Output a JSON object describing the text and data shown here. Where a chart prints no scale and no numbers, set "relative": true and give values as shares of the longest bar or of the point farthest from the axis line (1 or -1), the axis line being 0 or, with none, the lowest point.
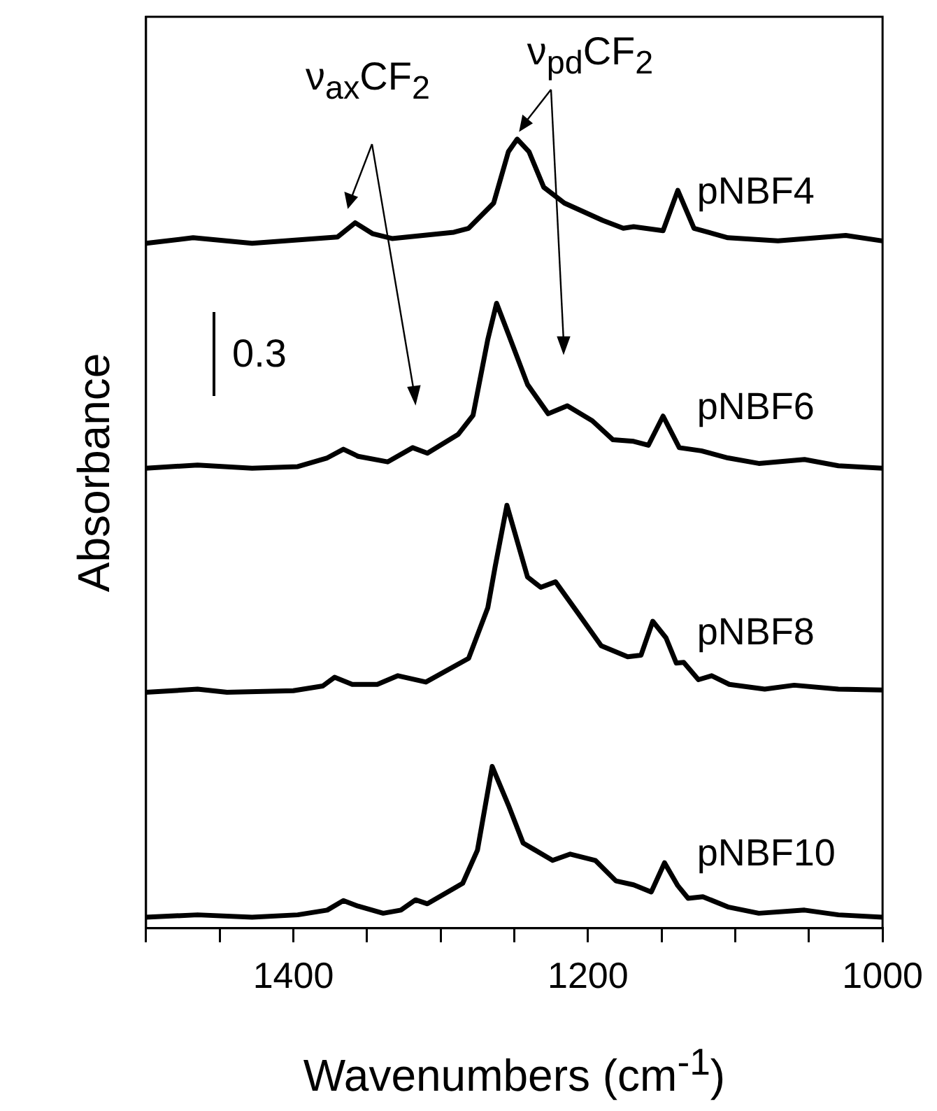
{
  "chart_data": {
    "type": "line",
    "xlabel": "Wavenumbers (cm$^{-1}$)",
    "ylabel": "Absorbance",
    "relative": true,
    "xlim": [
      1500,
      1000
    ],
    "xticks": [
      {
        "value": 1500,
        "label": null
      },
      {
        "value": 1450,
        "label": null
      },
      1400,
      {
        "value": 1350,
        "label": null
      },
      {
        "value": 1300,
        "label": null
      },
      {
        "value": 1250,
        "label": null
      },
      1200,
      {
        "value": 1150,
        "label": null
      },
      {
        "value": 1100,
        "label": null
      },
      {
        "value": 1050,
        "label": null
      },
      1000
    ],
    "tick_labels": "x",
    "grid": false,
    "legend": false,
    "marker": "none",
    "line_style": "solid",
    "annotations": [
      "ν$_{ax}$CF$_{2}$",
      "ν$_{pd}$CF$_{2}$",
      "0.3"
    ],
    "series": [
      {
        "name": "pNBF4",
        "color": "#000000",
        "x": [
          1500,
          1468,
          1428,
          1370,
          1358,
          1346,
          1333,
          1291,
          1281,
          1264,
          1254,
          1248,
          1240,
          1230,
          1216,
          1190,
          1176,
          1169,
          1149,
          1139,
          1128,
          1105,
          1071,
          1025,
          1000
        ],
        "values": [
          0.868,
          0.875,
          0.868,
          0.876,
          0.894,
          0.88,
          0.874,
          0.882,
          0.887,
          0.919,
          0.984,
          1.0,
          0.984,
          0.939,
          0.919,
          0.897,
          0.887,
          0.889,
          0.884,
          0.935,
          0.887,
          0.875,
          0.871,
          0.878,
          0.871
        ]
      },
      {
        "name": "pNBF6",
        "color": "#000000",
        "x": [
          1500,
          1465,
          1428,
          1397,
          1377,
          1366,
          1356,
          1336,
          1319,
          1309,
          1288,
          1278,
          1268,
          1262,
          1254,
          1241,
          1227,
          1214,
          1197,
          1183,
          1169,
          1159,
          1149,
          1138,
          1123,
          1105,
          1084,
          1053,
          1030,
          1000
        ],
        "values": [
          0.583,
          0.587,
          0.583,
          0.585,
          0.596,
          0.607,
          0.598,
          0.591,
          0.609,
          0.602,
          0.626,
          0.65,
          0.746,
          0.792,
          0.753,
          0.689,
          0.652,
          0.662,
          0.643,
          0.619,
          0.617,
          0.612,
          0.649,
          0.609,
          0.605,
          0.596,
          0.589,
          0.594,
          0.586,
          0.583
        ]
      },
      {
        "name": "pNBF8",
        "color": "#000000",
        "x": [
          1500,
          1465,
          1445,
          1400,
          1380,
          1372,
          1360,
          1343,
          1329,
          1310,
          1281,
          1268,
          1263,
          1255,
          1241,
          1232,
          1222,
          1207,
          1191,
          1173,
          1164,
          1156,
          1147,
          1140,
          1135,
          1125,
          1116,
          1104,
          1080,
          1060,
          1030,
          1000
        ],
        "values": [
          0.299,
          0.303,
          0.299,
          0.301,
          0.307,
          0.318,
          0.309,
          0.309,
          0.32,
          0.312,
          0.342,
          0.406,
          0.458,
          0.536,
          0.445,
          0.432,
          0.439,
          0.4,
          0.358,
          0.344,
          0.346,
          0.389,
          0.368,
          0.336,
          0.337,
          0.315,
          0.32,
          0.309,
          0.303,
          0.308,
          0.303,
          0.302
        ]
      },
      {
        "name": "pNBF10",
        "color": "#000000",
        "x": [
          1500,
          1465,
          1428,
          1397,
          1377,
          1366,
          1356,
          1339,
          1327,
          1317,
          1309,
          1285,
          1275,
          1265,
          1254,
          1244,
          1224,
          1212,
          1195,
          1181,
          1169,
          1157,
          1148,
          1139,
          1132,
          1122,
          1105,
          1084,
          1053,
          1030,
          1000
        ],
        "values": [
          0.014,
          0.017,
          0.014,
          0.017,
          0.023,
          0.035,
          0.028,
          0.019,
          0.023,
          0.036,
          0.031,
          0.057,
          0.099,
          0.205,
          0.156,
          0.108,
          0.086,
          0.094,
          0.086,
          0.06,
          0.055,
          0.046,
          0.083,
          0.054,
          0.038,
          0.04,
          0.027,
          0.019,
          0.023,
          0.017,
          0.014
        ]
      }
    ]
  }
}
